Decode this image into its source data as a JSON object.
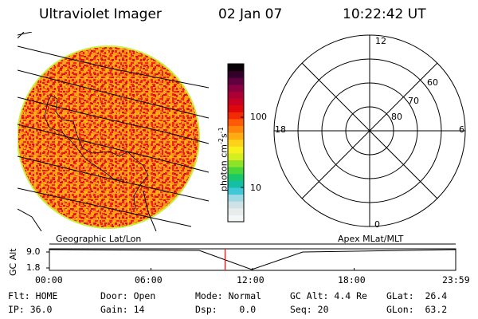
{
  "header": {
    "instrument": "Ultraviolet Imager",
    "date": "02 Jan 07",
    "time": "10:22:42 UT"
  },
  "colorbar": {
    "label": "photon cm",
    "label_exp1": "-2",
    "label_mid": "s",
    "label_exp2": "-1",
    "ticks": [
      {
        "label": "100",
        "value": 100
      },
      {
        "label": "10",
        "value": 10
      }
    ],
    "colors": [
      "#f4f6f6",
      "#e8ecec",
      "#cfe3e6",
      "#9fd9e4",
      "#3ec8d8",
      "#14bfa6",
      "#19c86a",
      "#48d63a",
      "#8ee228",
      "#d4ee1e",
      "#f7f01c",
      "#ffd21a",
      "#ffab12",
      "#ff8409",
      "#ff5a05",
      "#f22a06",
      "#e0060d",
      "#c80021",
      "#ab0034",
      "#8a0041",
      "#61003f",
      "#330029",
      "#0a0008"
    ]
  },
  "left_panel": {
    "caption": "Geographic Lat/Lon"
  },
  "right_panel": {
    "caption": "Apex MLat/MLT",
    "mlt_labels": {
      "top": "12",
      "left": "18",
      "right": "6",
      "bottom": "0"
    },
    "mlat_labels": [
      "60",
      "70",
      "80"
    ]
  },
  "altitude_plot": {
    "ylabel": "GC Alt",
    "ytick_high": "9.0",
    "ytick_low": "1.8",
    "xticks": [
      "00:00",
      "06:00",
      "12:00",
      "18:00",
      "23:59"
    ],
    "current_time_hours": 10.378,
    "current_time_color": "#ff0000"
  },
  "status": {
    "row1": [
      {
        "key": "Flt:",
        "value": "HOME"
      },
      {
        "key": "Door:",
        "value": "Open"
      },
      {
        "key": "Mode:",
        "value": "Normal"
      },
      {
        "key": "GC Alt:",
        "value": "4.4 Re"
      },
      {
        "key": "GLat:",
        "value": "26.4"
      }
    ],
    "row2": [
      {
        "key": "IP:",
        "value": "36.0"
      },
      {
        "key": "Gain:",
        "value": "14"
      },
      {
        "key": "Dsp:",
        "value": "0.0"
      },
      {
        "key": "Seq:",
        "value": "20"
      },
      {
        "key": "GLon:",
        "value": "63.2"
      }
    ]
  }
}
